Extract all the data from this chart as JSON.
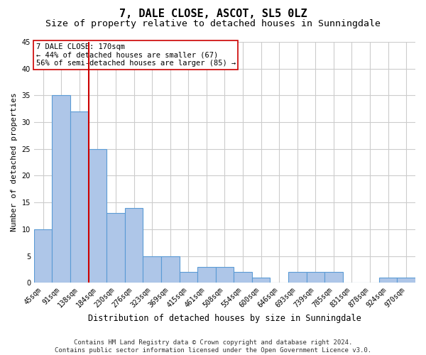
{
  "title": "7, DALE CLOSE, ASCOT, SL5 0LZ",
  "subtitle": "Size of property relative to detached houses in Sunningdale",
  "xlabel": "Distribution of detached houses by size in Sunningdale",
  "ylabel": "Number of detached properties",
  "footer_line1": "Contains HM Land Registry data © Crown copyright and database right 2024.",
  "footer_line2": "Contains public sector information licensed under the Open Government Licence v3.0.",
  "categories": [
    "45sqm",
    "91sqm",
    "138sqm",
    "184sqm",
    "230sqm",
    "276sqm",
    "323sqm",
    "369sqm",
    "415sqm",
    "461sqm",
    "508sqm",
    "554sqm",
    "600sqm",
    "646sqm",
    "693sqm",
    "739sqm",
    "785sqm",
    "831sqm",
    "878sqm",
    "924sqm",
    "970sqm"
  ],
  "values": [
    10,
    35,
    32,
    25,
    13,
    14,
    5,
    5,
    2,
    3,
    3,
    2,
    1,
    0,
    2,
    2,
    2,
    0,
    0,
    1,
    1
  ],
  "bar_color": "#aec6e8",
  "bar_edge_color": "#5b9bd5",
  "vline_color": "#cc0000",
  "annotation_title": "7 DALE CLOSE: 170sqm",
  "annotation_line1": "← 44% of detached houses are smaller (67)",
  "annotation_line2": "56% of semi-detached houses are larger (85) →",
  "annotation_box_color": "#ffffff",
  "annotation_box_edge_color": "#cc0000",
  "ylim": [
    0,
    45
  ],
  "yticks": [
    0,
    5,
    10,
    15,
    20,
    25,
    30,
    35,
    40,
    45
  ],
  "title_fontsize": 11,
  "subtitle_fontsize": 9.5,
  "xlabel_fontsize": 8.5,
  "ylabel_fontsize": 8,
  "tick_fontsize": 7,
  "annotation_fontsize": 7.5,
  "footer_fontsize": 6.5,
  "background_color": "#ffffff",
  "grid_color": "#cccccc"
}
